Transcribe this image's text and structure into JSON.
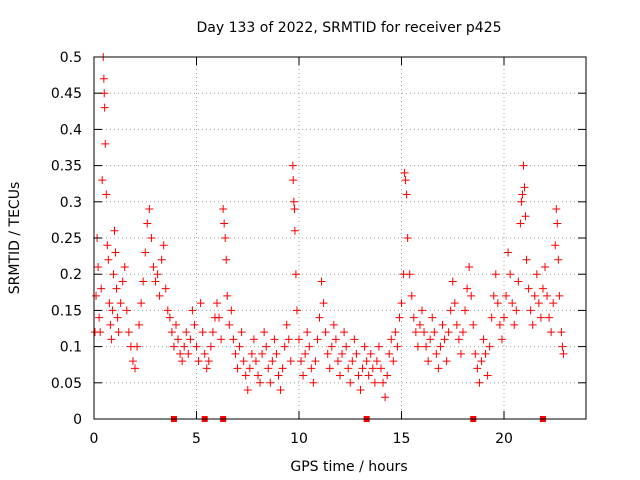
{
  "chart_data": {
    "type": "scatter",
    "title": "Day 133 of 2022, SRMTID for receiver p425",
    "xlabel": "GPS time / hours",
    "ylabel": "SRMTID / TECUs",
    "xlim": [
      0,
      24
    ],
    "ylim": [
      0,
      0.5
    ],
    "x_ticks": [
      0,
      5,
      10,
      15,
      20
    ],
    "x_tick_labels": [
      "0",
      "5",
      "10",
      "15",
      "20"
    ],
    "y_ticks": [
      0,
      0.05,
      0.1,
      0.15,
      0.2,
      0.25,
      0.3,
      0.35,
      0.4,
      0.45,
      0.5
    ],
    "y_tick_labels": [
      "0",
      "0.05",
      "0.1",
      "0.15",
      "0.2",
      "0.25",
      "0.3",
      "0.35",
      "0.4",
      "0.45",
      "0.5"
    ],
    "grid": true,
    "marker": "plus",
    "color": "#ff0000",
    "baseline_markers_x": [
      3.9,
      5.4,
      6.3,
      13.3,
      18.5,
      21.9
    ],
    "series": [
      {
        "name": "SRMTID",
        "points": [
          [
            0.05,
            0.12
          ],
          [
            0.1,
            0.17
          ],
          [
            0.15,
            0.25
          ],
          [
            0.2,
            0.21
          ],
          [
            0.25,
            0.14
          ],
          [
            0.3,
            0.12
          ],
          [
            0.35,
            0.18
          ],
          [
            0.4,
            0.33
          ],
          [
            0.45,
            0.5
          ],
          [
            0.48,
            0.47
          ],
          [
            0.5,
            0.45
          ],
          [
            0.52,
            0.43
          ],
          [
            0.55,
            0.38
          ],
          [
            0.6,
            0.31
          ],
          [
            0.65,
            0.24
          ],
          [
            0.7,
            0.22
          ],
          [
            0.75,
            0.16
          ],
          [
            0.8,
            0.13
          ],
          [
            0.85,
            0.11
          ],
          [
            0.9,
            0.15
          ],
          [
            0.95,
            0.2
          ],
          [
            1.0,
            0.26
          ],
          [
            1.05,
            0.23
          ],
          [
            1.1,
            0.18
          ],
          [
            1.15,
            0.14
          ],
          [
            1.2,
            0.12
          ],
          [
            1.3,
            0.16
          ],
          [
            1.4,
            0.19
          ],
          [
            1.5,
            0.21
          ],
          [
            1.6,
            0.15
          ],
          [
            1.7,
            0.12
          ],
          [
            1.8,
            0.1
          ],
          [
            1.9,
            0.08
          ],
          [
            2.0,
            0.07
          ],
          [
            2.1,
            0.1
          ],
          [
            2.2,
            0.13
          ],
          [
            2.3,
            0.16
          ],
          [
            2.4,
            0.19
          ],
          [
            2.5,
            0.23
          ],
          [
            2.6,
            0.27
          ],
          [
            2.7,
            0.29
          ],
          [
            2.8,
            0.25
          ],
          [
            2.9,
            0.21
          ],
          [
            3.0,
            0.19
          ],
          [
            3.1,
            0.2
          ],
          [
            3.2,
            0.17
          ],
          [
            3.3,
            0.22
          ],
          [
            3.4,
            0.24
          ],
          [
            3.5,
            0.18
          ],
          [
            3.6,
            0.15
          ],
          [
            3.7,
            0.14
          ],
          [
            3.8,
            0.12
          ],
          [
            3.9,
            0.1
          ],
          [
            4.0,
            0.13
          ],
          [
            4.1,
            0.11
          ],
          [
            4.2,
            0.09
          ],
          [
            4.3,
            0.08
          ],
          [
            4.4,
            0.1
          ],
          [
            4.5,
            0.12
          ],
          [
            4.6,
            0.09
          ],
          [
            4.7,
            0.11
          ],
          [
            4.8,
            0.15
          ],
          [
            4.9,
            0.13
          ],
          [
            5.0,
            0.1
          ],
          [
            5.1,
            0.08
          ],
          [
            5.2,
            0.16
          ],
          [
            5.3,
            0.12
          ],
          [
            5.4,
            0.09
          ],
          [
            5.5,
            0.07
          ],
          [
            5.6,
            0.08
          ],
          [
            5.7,
            0.1
          ],
          [
            5.8,
            0.12
          ],
          [
            5.9,
            0.14
          ],
          [
            6.0,
            0.16
          ],
          [
            6.1,
            0.14
          ],
          [
            6.2,
            0.11
          ],
          [
            6.3,
            0.29
          ],
          [
            6.35,
            0.27
          ],
          [
            6.4,
            0.25
          ],
          [
            6.45,
            0.22
          ],
          [
            6.5,
            0.17
          ],
          [
            6.6,
            0.13
          ],
          [
            6.7,
            0.15
          ],
          [
            6.8,
            0.11
          ],
          [
            6.9,
            0.09
          ],
          [
            7.0,
            0.07
          ],
          [
            7.1,
            0.1
          ],
          [
            7.2,
            0.12
          ],
          [
            7.3,
            0.08
          ],
          [
            7.4,
            0.06
          ],
          [
            7.5,
            0.04
          ],
          [
            7.6,
            0.07
          ],
          [
            7.7,
            0.09
          ],
          [
            7.8,
            0.11
          ],
          [
            7.9,
            0.08
          ],
          [
            8.0,
            0.06
          ],
          [
            8.1,
            0.05
          ],
          [
            8.2,
            0.09
          ],
          [
            8.3,
            0.12
          ],
          [
            8.4,
            0.1
          ],
          [
            8.5,
            0.07
          ],
          [
            8.6,
            0.05
          ],
          [
            8.7,
            0.08
          ],
          [
            8.8,
            0.11
          ],
          [
            8.9,
            0.09
          ],
          [
            9.0,
            0.06
          ],
          [
            9.1,
            0.04
          ],
          [
            9.2,
            0.07
          ],
          [
            9.3,
            0.1
          ],
          [
            9.4,
            0.13
          ],
          [
            9.5,
            0.11
          ],
          [
            9.6,
            0.08
          ],
          [
            9.7,
            0.35
          ],
          [
            9.72,
            0.33
          ],
          [
            9.75,
            0.3
          ],
          [
            9.78,
            0.29
          ],
          [
            9.8,
            0.26
          ],
          [
            9.85,
            0.2
          ],
          [
            9.9,
            0.15
          ],
          [
            10.0,
            0.11
          ],
          [
            10.1,
            0.08
          ],
          [
            10.2,
            0.06
          ],
          [
            10.3,
            0.09
          ],
          [
            10.4,
            0.12
          ],
          [
            10.5,
            0.1
          ],
          [
            10.6,
            0.07
          ],
          [
            10.7,
            0.05
          ],
          [
            10.8,
            0.08
          ],
          [
            10.9,
            0.11
          ],
          [
            11.0,
            0.14
          ],
          [
            11.1,
            0.19
          ],
          [
            11.2,
            0.16
          ],
          [
            11.3,
            0.12
          ],
          [
            11.4,
            0.09
          ],
          [
            11.5,
            0.07
          ],
          [
            11.6,
            0.1
          ],
          [
            11.7,
            0.13
          ],
          [
            11.8,
            0.11
          ],
          [
            11.9,
            0.08
          ],
          [
            12.0,
            0.06
          ],
          [
            12.1,
            0.09
          ],
          [
            12.2,
            0.12
          ],
          [
            12.3,
            0.1
          ],
          [
            12.4,
            0.07
          ],
          [
            12.5,
            0.05
          ],
          [
            12.6,
            0.08
          ],
          [
            12.7,
            0.11
          ],
          [
            12.8,
            0.09
          ],
          [
            12.9,
            0.06
          ],
          [
            13.0,
            0.04
          ],
          [
            13.1,
            0.07
          ],
          [
            13.2,
            0.1
          ],
          [
            13.3,
            0.08
          ],
          [
            13.4,
            0.06
          ],
          [
            13.5,
            0.09
          ],
          [
            13.6,
            0.07
          ],
          [
            13.7,
            0.05
          ],
          [
            13.8,
            0.08
          ],
          [
            13.9,
            0.1
          ],
          [
            14.0,
            0.07
          ],
          [
            14.1,
            0.05
          ],
          [
            14.2,
            0.03
          ],
          [
            14.3,
            0.06
          ],
          [
            14.4,
            0.09
          ],
          [
            14.5,
            0.11
          ],
          [
            14.6,
            0.08
          ],
          [
            14.7,
            0.12
          ],
          [
            14.8,
            0.1
          ],
          [
            14.9,
            0.14
          ],
          [
            15.0,
            0.16
          ],
          [
            15.1,
            0.2
          ],
          [
            15.15,
            0.34
          ],
          [
            15.2,
            0.33
          ],
          [
            15.25,
            0.31
          ],
          [
            15.3,
            0.25
          ],
          [
            15.4,
            0.2
          ],
          [
            15.5,
            0.17
          ],
          [
            15.6,
            0.14
          ],
          [
            15.7,
            0.12
          ],
          [
            15.8,
            0.1
          ],
          [
            15.9,
            0.13
          ],
          [
            16.0,
            0.15
          ],
          [
            16.1,
            0.12
          ],
          [
            16.2,
            0.1
          ],
          [
            16.3,
            0.08
          ],
          [
            16.4,
            0.11
          ],
          [
            16.5,
            0.14
          ],
          [
            16.6,
            0.12
          ],
          [
            16.7,
            0.09
          ],
          [
            16.8,
            0.07
          ],
          [
            16.9,
            0.1
          ],
          [
            17.0,
            0.13
          ],
          [
            17.1,
            0.11
          ],
          [
            17.2,
            0.08
          ],
          [
            17.3,
            0.12
          ],
          [
            17.4,
            0.15
          ],
          [
            17.5,
            0.19
          ],
          [
            17.6,
            0.16
          ],
          [
            17.7,
            0.13
          ],
          [
            17.8,
            0.11
          ],
          [
            17.9,
            0.09
          ],
          [
            18.0,
            0.12
          ],
          [
            18.1,
            0.15
          ],
          [
            18.2,
            0.18
          ],
          [
            18.3,
            0.21
          ],
          [
            18.4,
            0.17
          ],
          [
            18.5,
            0.13
          ],
          [
            18.6,
            0.09
          ],
          [
            18.7,
            0.07
          ],
          [
            18.8,
            0.05
          ],
          [
            18.9,
            0.08
          ],
          [
            19.0,
            0.11
          ],
          [
            19.1,
            0.09
          ],
          [
            19.2,
            0.06
          ],
          [
            19.3,
            0.1
          ],
          [
            19.4,
            0.14
          ],
          [
            19.5,
            0.17
          ],
          [
            19.6,
            0.2
          ],
          [
            19.7,
            0.16
          ],
          [
            19.8,
            0.13
          ],
          [
            19.9,
            0.11
          ],
          [
            20.0,
            0.14
          ],
          [
            20.1,
            0.17
          ],
          [
            20.2,
            0.23
          ],
          [
            20.3,
            0.2
          ],
          [
            20.4,
            0.16
          ],
          [
            20.5,
            0.13
          ],
          [
            20.6,
            0.15
          ],
          [
            20.7,
            0.19
          ],
          [
            20.8,
            0.27
          ],
          [
            20.85,
            0.3
          ],
          [
            20.9,
            0.31
          ],
          [
            20.95,
            0.35
          ],
          [
            21.0,
            0.32
          ],
          [
            21.05,
            0.28
          ],
          [
            21.1,
            0.22
          ],
          [
            21.2,
            0.18
          ],
          [
            21.3,
            0.15
          ],
          [
            21.4,
            0.13
          ],
          [
            21.5,
            0.17
          ],
          [
            21.6,
            0.2
          ],
          [
            21.7,
            0.16
          ],
          [
            21.8,
            0.14
          ],
          [
            21.9,
            0.18
          ],
          [
            22.0,
            0.21
          ],
          [
            22.1,
            0.17
          ],
          [
            22.2,
            0.14
          ],
          [
            22.3,
            0.12
          ],
          [
            22.4,
            0.16
          ],
          [
            22.5,
            0.24
          ],
          [
            22.55,
            0.29
          ],
          [
            22.6,
            0.27
          ],
          [
            22.65,
            0.22
          ],
          [
            22.7,
            0.17
          ],
          [
            22.8,
            0.12
          ],
          [
            22.85,
            0.1
          ],
          [
            22.9,
            0.09
          ]
        ]
      }
    ]
  }
}
